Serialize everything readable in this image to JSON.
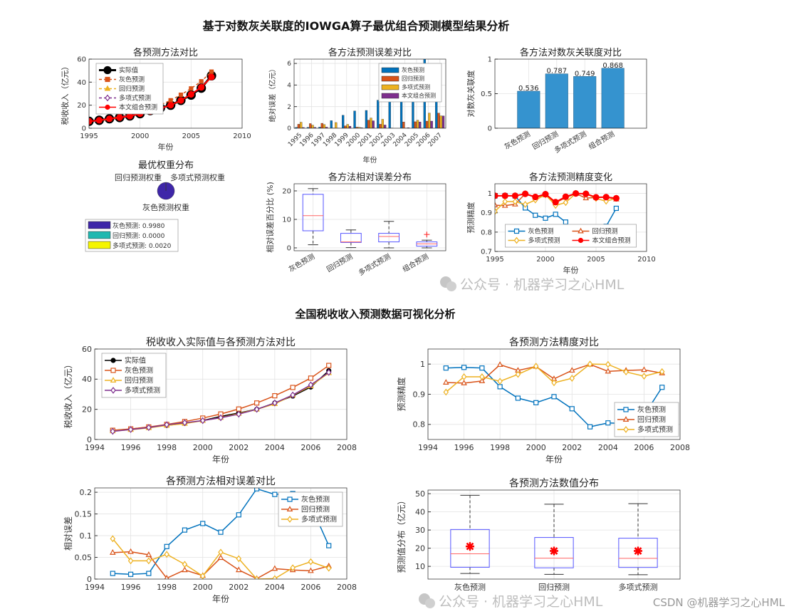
{
  "figure": {
    "title_top": "基于对数灰关联度的IOWGA算子最优组合预测模型结果分析",
    "title_bottom": "全国税收收入预测数据可视化分析",
    "watermark_1": "公众号 · 机器学习之心HML",
    "watermark_2": "公众号 · 机器学习之心HML",
    "watermark_csdn": "CSDN @机器学习之心HML"
  },
  "colors": {
    "blue": "#0072BD",
    "orange": "#D95319",
    "yellow": "#EDB120",
    "purple": "#7E2F8E",
    "red": "#FF0000",
    "black": "#000000",
    "bar": "#3593CF"
  },
  "chart_data": [
    {
      "type": "line",
      "title": "各预测方法对比",
      "xlabel": "年份",
      "ylabel": "税收收入（亿元）",
      "xlim": [
        1995,
        2010
      ],
      "xticks": [
        1995,
        2000,
        2005,
        2010
      ],
      "ylim": [
        0,
        60
      ],
      "yticks": [
        0,
        20,
        40,
        60
      ],
      "grid": true,
      "legend": "northwest",
      "x": [
        1995,
        1996,
        1997,
        1998,
        1999,
        2000,
        2001,
        2002,
        2003,
        2004,
        2005,
        2006,
        2007
      ],
      "series": [
        {
          "name": "实际值",
          "color": "#000000",
          "marker": "circle",
          "filled": true,
          "dash": false,
          "values": [
            6.0,
            6.9,
            8.2,
            9.3,
            10.7,
            12.6,
            15.3,
            17.6,
            20.0,
            24.2,
            28.8,
            34.8,
            45.6
          ]
        },
        {
          "name": "灰色预测",
          "color": "#D95319",
          "marker": "square",
          "filled": true,
          "dash": true,
          "values": [
            6.1,
            7.0,
            8.3,
            10.0,
            11.9,
            14.2,
            16.9,
            20.2,
            24.2,
            29.0,
            34.5,
            40.7,
            49.1
          ]
        },
        {
          "name": "回归预测",
          "color": "#EDB120",
          "marker": "triangle",
          "filled": true,
          "dash": true,
          "values": [
            5.6,
            6.5,
            7.7,
            9.3,
            10.5,
            12.5,
            14.5,
            17.2,
            20.0,
            23.6,
            29.4,
            35.5,
            44.2
          ]
        },
        {
          "name": "多项式预测",
          "color": "#7E2F8E",
          "marker": "diamond",
          "filled": false,
          "dash": true,
          "values": [
            5.4,
            6.6,
            7.9,
            9.8,
            11.1,
            12.5,
            14.4,
            16.8,
            20.0,
            24.2,
            29.5,
            36.2,
            44.5
          ]
        },
        {
          "name": "本文组合预测",
          "color": "#FF0000",
          "marker": "circle",
          "filled": true,
          "dash": false,
          "values": [
            6.0,
            6.9,
            8.2,
            9.3,
            10.5,
            12.6,
            14.6,
            17.3,
            20.0,
            24.1,
            29.4,
            35.5,
            44.5
          ]
        }
      ]
    },
    {
      "type": "bar",
      "title": "各方法预测误差对比",
      "xlabel": "年份",
      "ylabel": "绝对误差（亿元）",
      "ylim": [
        0,
        6.4
      ],
      "yticks": [
        0,
        2,
        4,
        6
      ],
      "grid": true,
      "legend": "northeast",
      "categories": [
        "1995",
        "1996",
        "1997",
        "1998",
        "1999",
        "2000",
        "2001",
        "2002",
        "2003",
        "2004",
        "2005",
        "2006",
        "2007"
      ],
      "series": [
        {
          "name": "灰色预测",
          "color": "#0072BD",
          "values": [
            0.08,
            0.08,
            0.1,
            0.7,
            1.2,
            1.6,
            1.65,
            2.6,
            4.2,
            4.7,
            5.7,
            6.4,
            3.5
          ]
        },
        {
          "name": "回归预测",
          "color": "#D95319",
          "values": [
            0.37,
            0.43,
            0.46,
            0.02,
            0.22,
            0.1,
            0.75,
            0.37,
            0.02,
            0.58,
            0.6,
            0.66,
            1.4
          ]
        },
        {
          "name": "多项式预测",
          "color": "#EDB120",
          "values": [
            0.56,
            0.29,
            0.34,
            0.53,
            0.36,
            0.09,
            0.95,
            0.83,
            0.0,
            0.02,
            0.75,
            1.4,
            1.15
          ]
        },
        {
          "name": "本文组合预测",
          "color": "#7E2F8E",
          "values": [
            0.07,
            0.08,
            0.1,
            0.02,
            0.19,
            0.05,
            0.69,
            0.3,
            0.0,
            0.05,
            0.58,
            0.66,
            1.14
          ]
        }
      ]
    },
    {
      "type": "bar",
      "title": "各方法对数灰关联度对比",
      "xlabel": "",
      "ylabel": "对数灰关联度",
      "xlim": [
        -0.2,
        5.2
      ],
      "ylim": [
        0,
        1
      ],
      "yticks": [
        0,
        0.5,
        1
      ],
      "grid": true,
      "categories": [
        "灰色预测",
        "回归预测",
        "多项式预测",
        "组合预测"
      ],
      "values": [
        0.536,
        0.787,
        0.749,
        0.868
      ],
      "data_labels": [
        "0.536",
        "0.787",
        "0.749",
        "0.868"
      ]
    },
    {
      "type": "pie",
      "title": "最优权重分布",
      "categories": [
        "灰色预测",
        "回归预测",
        "多项式预测"
      ],
      "values": [
        0.998,
        0.0,
        0.002
      ],
      "colors": [
        "#3E26A8",
        "#1FB8B0",
        "#F5F500"
      ],
      "slice_labels": [
        "灰色预测权重",
        "回归预测权重",
        "多项式预测权重"
      ],
      "legend_entries": [
        "灰色预测: 0.9980",
        "回归预测: 0.0000",
        "多项式预测: 0.0020"
      ]
    },
    {
      "type": "box",
      "title": "各方法相对误差分布",
      "xlabel": "",
      "ylabel": "相对误差百分比 (%)",
      "ylim": [
        -1,
        22.5
      ],
      "yticks": [
        0,
        10,
        20
      ],
      "grid": true,
      "categories": [
        "灰色预测",
        "回归预测",
        "多项式预测",
        "组合预测"
      ],
      "boxes": [
        {
          "min": 1.1,
          "q1": 6.0,
          "median": 11.3,
          "q3": 18.8,
          "max": 20.8,
          "outliers": []
        },
        {
          "min": 0.1,
          "q1": 1.9,
          "median": 2.1,
          "q3": 5.1,
          "max": 6.3,
          "outliers": []
        },
        {
          "min": 0.0,
          "q1": 2.1,
          "median": 4.0,
          "q3": 5.1,
          "max": 9.3,
          "outliers": []
        },
        {
          "min": 0.0,
          "q1": 0.6,
          "median": 1.4,
          "q3": 2.1,
          "max": 2.7,
          "outliers": [
            4.7
          ]
        }
      ]
    },
    {
      "type": "line",
      "title": "各方法预测精度变化",
      "xlabel": "年份",
      "ylabel": "预测精度",
      "xlim": [
        1995,
        2010
      ],
      "xticks": [
        1995,
        2000,
        2005,
        2010
      ],
      "ylim": [
        0.7,
        1.05
      ],
      "yticks": [
        0.7,
        0.8,
        0.9,
        1
      ],
      "grid": true,
      "legend": "south",
      "legend_columns": 2,
      "x": [
        1995,
        1996,
        1997,
        1998,
        1999,
        2000,
        2001,
        2002,
        2003,
        2004,
        2005,
        2006,
        2007
      ],
      "series": [
        {
          "name": "灰色预测",
          "color": "#0072BD",
          "marker": "square",
          "filled": false,
          "dash": false,
          "values": [
            0.987,
            0.989,
            0.987,
            0.925,
            0.887,
            0.872,
            0.892,
            0.852,
            0.792,
            0.805,
            0.803,
            0.83,
            0.923
          ]
        },
        {
          "name": "回归预测",
          "color": "#D95319",
          "marker": "triangle",
          "filled": false,
          "dash": false,
          "values": [
            0.939,
            0.937,
            0.944,
            0.998,
            0.979,
            0.992,
            0.951,
            0.979,
            0.999,
            0.976,
            0.979,
            0.981,
            0.97
          ]
        },
        {
          "name": "多项式预测",
          "color": "#EDB120",
          "marker": "diamond",
          "filled": false,
          "dash": false,
          "values": [
            0.907,
            0.958,
            0.958,
            0.943,
            0.966,
            0.993,
            0.938,
            0.953,
            1.0,
            0.999,
            0.974,
            0.96,
            0.975
          ]
        },
        {
          "name": "本文组合预测",
          "color": "#FF0000",
          "marker": "circle",
          "filled": true,
          "dash": false,
          "values": [
            0.988,
            0.988,
            0.988,
            0.998,
            0.982,
            0.996,
            0.955,
            0.983,
            1.0,
            0.998,
            0.98,
            0.981,
            0.975
          ]
        }
      ]
    },
    {
      "type": "line",
      "title": "税收收入实际值与各预测方法对比",
      "xlabel": "年份",
      "ylabel": "税收收入（亿元）",
      "xlim": [
        1994,
        2008
      ],
      "xticks": [
        1994,
        1996,
        1998,
        2000,
        2002,
        2004,
        2006,
        2008
      ],
      "ylim": [
        0,
        60
      ],
      "yticks": [
        0,
        20,
        40,
        60
      ],
      "grid": true,
      "legend": "northwest",
      "x": [
        1995,
        1996,
        1997,
        1998,
        1999,
        2000,
        2001,
        2002,
        2003,
        2004,
        2005,
        2006,
        2007
      ],
      "series": [
        {
          "name": "实际值",
          "color": "#000000",
          "marker": "circle",
          "filled": true,
          "dash": false,
          "values": [
            6.0,
            6.9,
            8.2,
            9.3,
            10.7,
            12.6,
            15.3,
            17.6,
            20.0,
            24.2,
            28.8,
            34.8,
            45.6
          ]
        },
        {
          "name": "灰色预测",
          "color": "#D95319",
          "marker": "square",
          "filled": false,
          "dash": false,
          "values": [
            6.1,
            7.0,
            8.3,
            10.0,
            11.9,
            14.2,
            16.9,
            20.2,
            24.2,
            29.0,
            34.5,
            40.7,
            49.1
          ]
        },
        {
          "name": "回归预测",
          "color": "#EDB120",
          "marker": "triangle",
          "filled": false,
          "dash": false,
          "values": [
            5.6,
            6.5,
            7.7,
            9.3,
            10.5,
            12.5,
            14.5,
            17.2,
            20.0,
            23.6,
            29.4,
            35.5,
            44.2
          ]
        },
        {
          "name": "多项式预测",
          "color": "#7E2F8E",
          "marker": "diamond",
          "filled": false,
          "dash": false,
          "values": [
            5.4,
            6.6,
            7.9,
            9.8,
            11.1,
            12.5,
            14.4,
            16.8,
            20.0,
            24.2,
            29.5,
            36.2,
            44.5
          ]
        }
      ]
    },
    {
      "type": "line",
      "title": "各预测方法精度对比",
      "xlabel": "年份",
      "ylabel": "预测精度",
      "xlim": [
        1994,
        2008
      ],
      "xticks": [
        1994,
        1996,
        1998,
        2000,
        2002,
        2004,
        2006,
        2008
      ],
      "ylim": [
        0.75,
        1.05
      ],
      "yticks": [
        0.8,
        0.9,
        1
      ],
      "grid": true,
      "legend": "southeast",
      "x": [
        1995,
        1996,
        1997,
        1998,
        1999,
        2000,
        2001,
        2002,
        2003,
        2004,
        2005,
        2006,
        2007
      ],
      "series": [
        {
          "name": "灰色预测",
          "color": "#0072BD",
          "marker": "square",
          "filled": false,
          "dash": false,
          "values": [
            0.987,
            0.989,
            0.987,
            0.925,
            0.887,
            0.872,
            0.892,
            0.852,
            0.792,
            0.805,
            0.803,
            0.83,
            0.923
          ]
        },
        {
          "name": "回归预测",
          "color": "#D95319",
          "marker": "triangle",
          "filled": false,
          "dash": false,
          "values": [
            0.939,
            0.937,
            0.944,
            0.998,
            0.979,
            0.992,
            0.951,
            0.979,
            0.999,
            0.976,
            0.979,
            0.981,
            0.97
          ]
        },
        {
          "name": "多项式预测",
          "color": "#EDB120",
          "marker": "diamond",
          "filled": false,
          "dash": false,
          "values": [
            0.907,
            0.958,
            0.958,
            0.943,
            0.966,
            0.993,
            0.938,
            0.953,
            1.0,
            0.999,
            0.974,
            0.96,
            0.975
          ]
        }
      ]
    },
    {
      "type": "line",
      "title": "各预测方法相对误差对比",
      "xlabel": "年份",
      "ylabel": "相对误差",
      "xlim": [
        1994,
        2008
      ],
      "xticks": [
        1994,
        1996,
        1998,
        2000,
        2002,
        2004,
        2006,
        2008
      ],
      "ylim": [
        0,
        0.21
      ],
      "yticks": [
        0,
        0.05,
        0.1,
        0.15,
        0.2
      ],
      "grid": true,
      "legend": "northeast",
      "x": [
        1995,
        1996,
        1997,
        1998,
        1999,
        2000,
        2001,
        2002,
        2003,
        2004,
        2005,
        2006,
        2007
      ],
      "series": [
        {
          "name": "灰色预测",
          "color": "#0072BD",
          "marker": "square",
          "filled": false,
          "dash": false,
          "values": [
            0.013,
            0.011,
            0.013,
            0.075,
            0.113,
            0.128,
            0.108,
            0.148,
            0.208,
            0.195,
            0.197,
            0.17,
            0.077
          ]
        },
        {
          "name": "回归预测",
          "color": "#D95319",
          "marker": "triangle",
          "filled": false,
          "dash": false,
          "values": [
            0.061,
            0.063,
            0.056,
            0.002,
            0.021,
            0.008,
            0.049,
            0.021,
            0.001,
            0.024,
            0.021,
            0.019,
            0.03
          ]
        },
        {
          "name": "多项式预测",
          "color": "#EDB120",
          "marker": "diamond",
          "filled": false,
          "dash": false,
          "values": [
            0.093,
            0.042,
            0.042,
            0.057,
            0.034,
            0.007,
            0.062,
            0.047,
            0.0,
            0.001,
            0.026,
            0.04,
            0.025
          ]
        }
      ]
    },
    {
      "type": "box",
      "title": "各预测方法数值分布",
      "xlabel": "",
      "ylabel": "预测值分布（亿元）",
      "ylim": [
        3,
        52
      ],
      "yticks": [
        10,
        20,
        30,
        40,
        50
      ],
      "grid": true,
      "categories": [
        "灰色预测",
        "回归预测",
        "多项式预测"
      ],
      "boxes": [
        {
          "min": 6.1,
          "q1": 9.5,
          "median": 16.9,
          "q3": 30.3,
          "max": 49.1,
          "mean": 21.0,
          "outliers": []
        },
        {
          "min": 5.6,
          "q1": 9.2,
          "median": 14.5,
          "q3": 25.9,
          "max": 44.2,
          "mean": 18.5,
          "outliers": []
        },
        {
          "min": 5.4,
          "q1": 9.4,
          "median": 14.4,
          "q3": 25.5,
          "max": 44.5,
          "mean": 18.5,
          "outliers": []
        }
      ]
    }
  ]
}
